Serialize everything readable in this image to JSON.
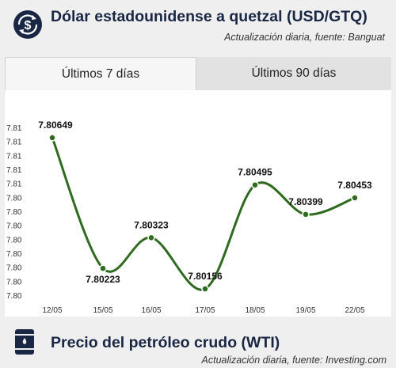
{
  "header": {
    "title": "Dólar estadounidense a quetzal (USD/GTQ)",
    "subtitle": "Actualización diaria, fuente: Banguat",
    "icon": "dollar-exchange-icon"
  },
  "tabs": [
    {
      "label": "Últimos 7 días",
      "active": true
    },
    {
      "label": "Últimos 90 días",
      "active": false
    }
  ],
  "chart_data": {
    "type": "line",
    "categories": [
      "12/05",
      "15/05",
      "16/05",
      "17/05",
      "18/05",
      "19/05",
      "22/05"
    ],
    "series": [
      {
        "values": [
          7.80649,
          7.80223,
          7.80323,
          7.80156,
          7.80495,
          7.80399,
          7.80453
        ]
      }
    ],
    "data_labels": [
      "7.80649",
      "7.80223",
      "7.80323",
      "7.80156",
      "7.80495",
      "7.80399",
      "7.80453"
    ],
    "y_tick_labels": [
      "7.81",
      "7.81",
      "7.81",
      "7.81",
      "7.81",
      "7.80",
      "7.80",
      "7.80",
      "7.80",
      "7.80",
      "7.80",
      "7.80",
      "7.80"
    ],
    "ylim": [
      7.8012,
      7.8068
    ],
    "grid": false,
    "line_color": "#2e6b1f",
    "point_color": "#2e6b1f"
  },
  "footer": {
    "title": "Precio del petróleo crudo (WTI)",
    "subtitle": "Actualización diaria, fuente: Investing.com",
    "icon": "oil-barrel-icon"
  }
}
